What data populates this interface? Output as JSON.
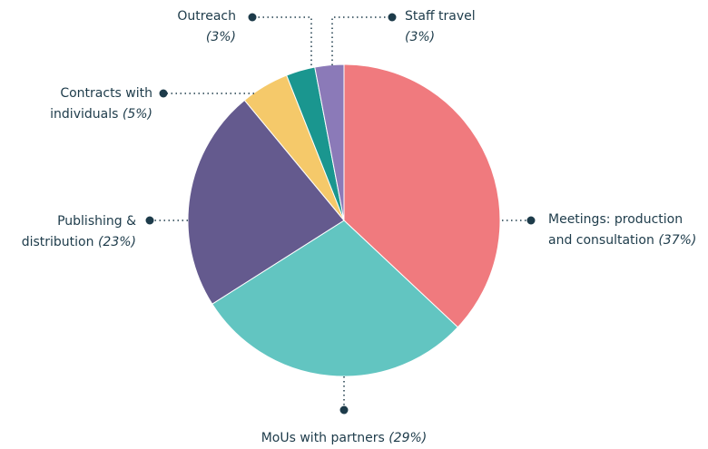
{
  "chart_data": {
    "type": "pie",
    "categories": [
      "Meetings: production and consultation",
      "MoUs with partners",
      "Publishing & distribution",
      "Contracts with individuals",
      "Outreach",
      "Staff travel"
    ],
    "values": [
      37,
      29,
      23,
      5,
      3,
      3
    ],
    "value_labels": [
      "(37%)",
      "(29%)",
      "(23%)",
      "(5%)",
      "(3%)",
      "(3%)"
    ],
    "colors": [
      "#f07a7e",
      "#62c5c1",
      "#645a8e",
      "#f5c96a",
      "#1a968f",
      "#8b7ab8"
    ]
  }
}
